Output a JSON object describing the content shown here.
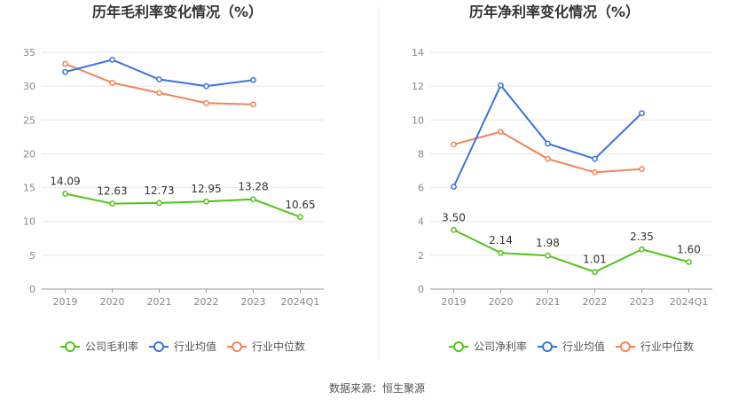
{
  "source": "数据来源：恒生聚源",
  "colors": {
    "company": "#52c41a",
    "avg": "#3b73db",
    "median": "#f0855a"
  },
  "legend_common": {
    "avg": "行业均值",
    "median": "行业中位数"
  },
  "chart_data": [
    {
      "type": "line",
      "title": "历年毛利率变化情况（%）",
      "categories": [
        "2019",
        "2020",
        "2021",
        "2022",
        "2023",
        "2024Q1"
      ],
      "ylim": [
        0,
        35
      ],
      "yticks": [
        "0",
        "5",
        "10",
        "15",
        "20",
        "25",
        "30",
        "35"
      ],
      "series": [
        {
          "name": "公司毛利率",
          "key": "company",
          "values": [
            14.09,
            12.63,
            12.73,
            12.95,
            13.28,
            10.65
          ],
          "labels": [
            "14.09",
            "12.63",
            "12.73",
            "12.95",
            "13.28",
            "10.65"
          ]
        },
        {
          "name": "行业均值",
          "key": "avg",
          "values": [
            32.1,
            33.9,
            31.0,
            30.0,
            30.9,
            null
          ]
        },
        {
          "name": "行业中位数",
          "key": "median",
          "values": [
            33.3,
            30.5,
            29.0,
            27.5,
            27.3,
            null
          ]
        }
      ]
    },
    {
      "type": "line",
      "title": "历年净利率变化情况（%）",
      "categories": [
        "2019",
        "2020",
        "2021",
        "2022",
        "2023",
        "2024Q1"
      ],
      "ylim": [
        0,
        14
      ],
      "yticks": [
        "0",
        "2",
        "4",
        "6",
        "8",
        "10",
        "12",
        "14"
      ],
      "series": [
        {
          "name": "公司净利率",
          "key": "company",
          "values": [
            3.5,
            2.14,
            1.98,
            1.01,
            2.35,
            1.6
          ],
          "labels": [
            "3.50",
            "2.14",
            "1.98",
            "1.01",
            "2.35",
            "1.60"
          ]
        },
        {
          "name": "行业均值",
          "key": "avg",
          "values": [
            6.05,
            12.05,
            8.6,
            7.7,
            10.4,
            null
          ]
        },
        {
          "name": "行业中位数",
          "key": "median",
          "values": [
            8.55,
            9.3,
            7.7,
            6.9,
            7.1,
            null
          ]
        }
      ]
    }
  ]
}
